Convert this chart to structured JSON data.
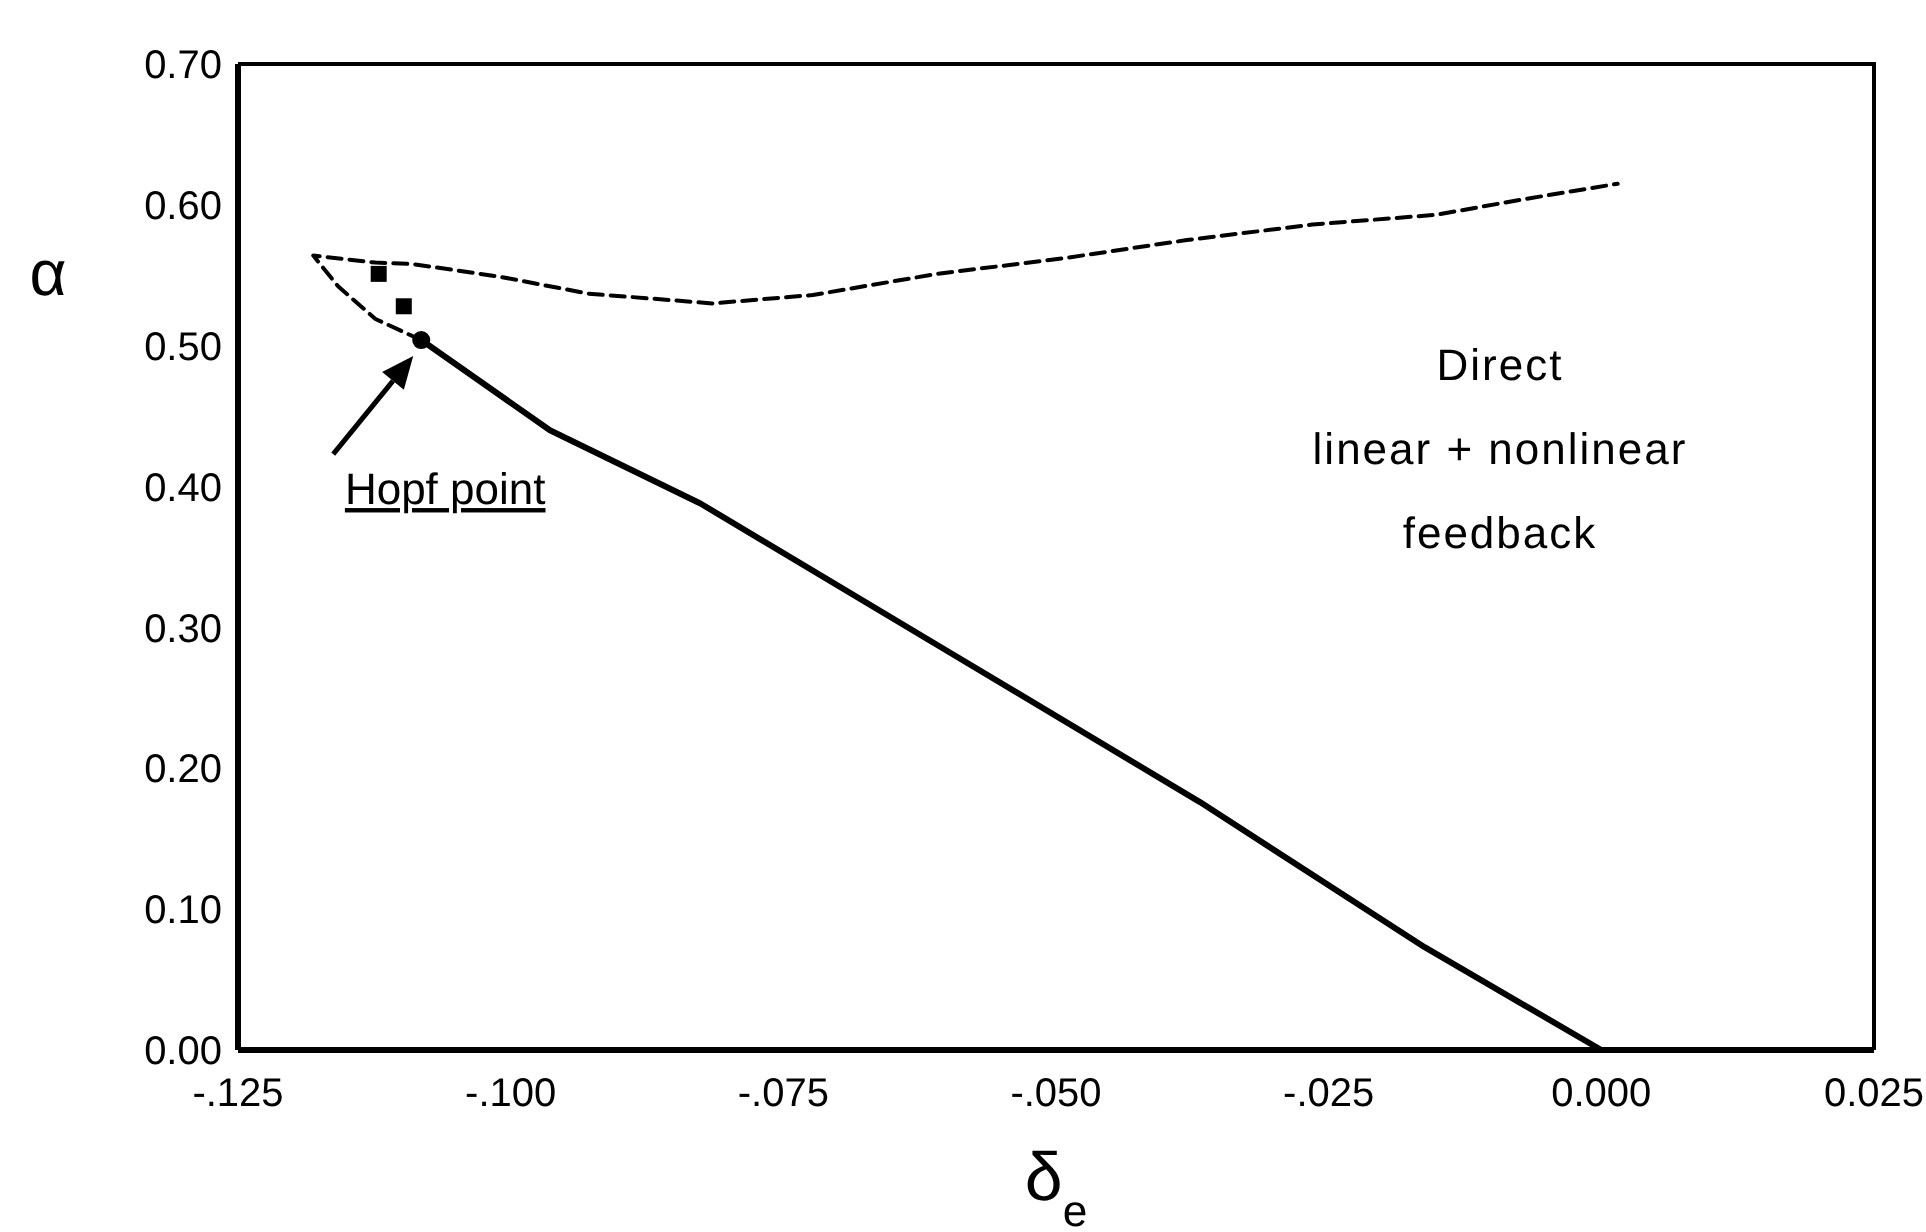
{
  "chart_data": {
    "type": "line",
    "xlabel": "δ$_{e}$",
    "ylabel": "α",
    "xlim": [
      -0.125,
      0.025
    ],
    "xticks": [
      {
        "value": -0.125,
        "label": "-.125"
      },
      {
        "value": -0.1,
        "label": "-.100"
      },
      {
        "value": -0.075,
        "label": "-.075"
      },
      {
        "value": -0.05,
        "label": "-.050"
      },
      {
        "value": -0.025,
        "label": "-.025"
      },
      {
        "value": 0,
        "label": "0.000"
      },
      {
        "value": 0.025,
        "label": "0.025"
      }
    ],
    "ylim": [
      0,
      0.7
    ],
    "yticks": [
      {
        "value": 0,
        "label": "0.00"
      },
      {
        "value": 0.1,
        "label": "0.10"
      },
      {
        "value": 0.2,
        "label": "0.20"
      },
      {
        "value": 0.3,
        "label": "0.30"
      },
      {
        "value": 0.4,
        "label": "0.40"
      },
      {
        "value": 0.5,
        "label": "0.50"
      },
      {
        "value": 0.6,
        "label": "0.60"
      },
      {
        "value": 0.7,
        "label": "0.70"
      }
    ],
    "series": [
      {
        "type": "line",
        "color": "#000000",
        "line_style": "solid",
        "marker": "none",
        "x": [
          -0.1082,
          -0.0964,
          -0.0826,
          -0.0597,
          -0.0368,
          -0.0162,
          0
        ],
        "values": [
          0.504,
          0.44,
          0.388,
          0.282,
          0.176,
          0.073,
          0
        ]
      },
      {
        "type": "line",
        "color": "#000000",
        "line_style": "dashed",
        "marker": "none",
        "x": [
          -0.1082,
          -0.1124,
          -0.1158,
          -0.1181,
          -0.1124,
          -0.109,
          -0.101,
          -0.0929,
          -0.0815,
          -0.0723,
          -0.0609,
          -0.0494,
          -0.038,
          -0.0265,
          -0.0151,
          -0.0071,
          0.0015
        ],
        "values": [
          0.504,
          0.519,
          0.542,
          0.564,
          0.559,
          0.558,
          0.549,
          0.537,
          0.53,
          0.536,
          0.551,
          0.562,
          0.575,
          0.586,
          0.593,
          0.604,
          0.615
        ]
      },
      {
        "type": "scatter",
        "color": "#000000",
        "marker": "square",
        "x": [
          -0.1121,
          -0.1098
        ],
        "values": [
          0.551,
          0.528
        ]
      },
      {
        "type": "scatter",
        "color": "#000000",
        "marker": "circle",
        "x": [
          -0.1082
        ],
        "values": [
          0.504
        ]
      }
    ],
    "annotations": [
      {
        "text": "Hopf point",
        "x": -0.1082,
        "y": 0.504
      },
      "Direct\nlinear + nonlinear\nfeedback"
    ]
  }
}
